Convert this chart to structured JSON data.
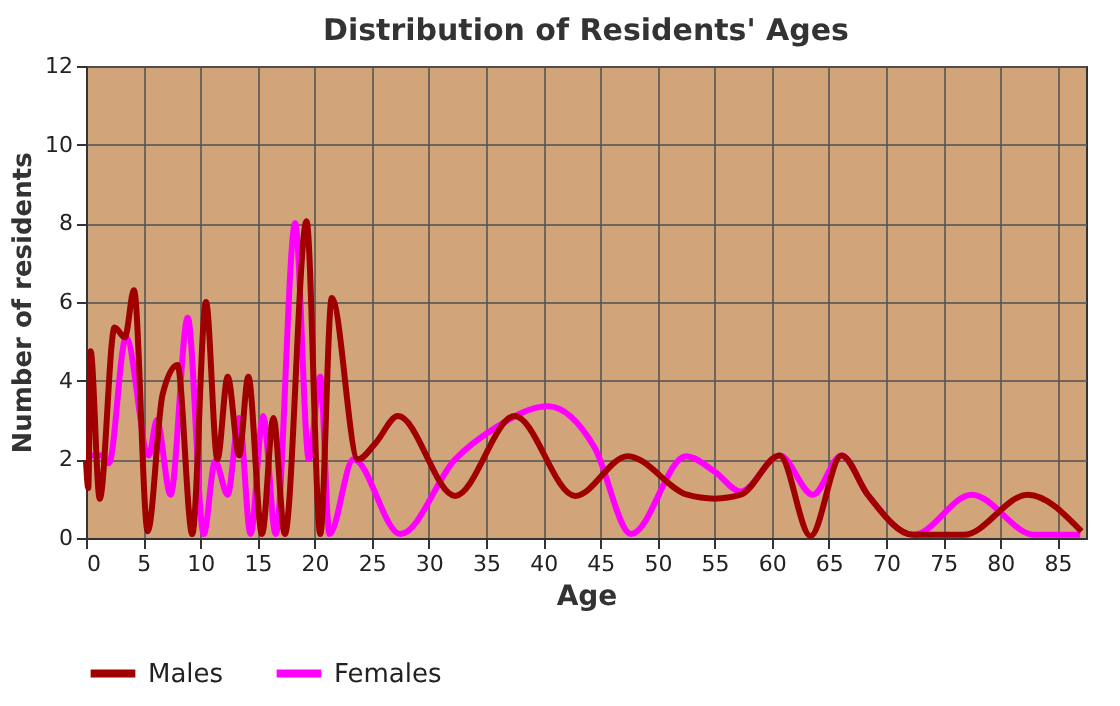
{
  "chart_data": {
    "type": "line",
    "title": "Distribution of Residents' Ages",
    "xlabel": "Age",
    "ylabel": "Number of residents",
    "xlim": [
      0,
      87.5
    ],
    "xticks": [
      0,
      5,
      10,
      15,
      20,
      25,
      30,
      35,
      40,
      45,
      50,
      55,
      60,
      65,
      70,
      75,
      80,
      85
    ],
    "ylim": [
      0,
      12
    ],
    "yticks": [
      0,
      2,
      4,
      6,
      8,
      10,
      12
    ],
    "grid": true,
    "legend": "bottom",
    "line_style": "solid",
    "marker": "none",
    "series": [
      {
        "name": "Males",
        "color": "#a00000",
        "x": [
          0,
          0.2,
          0.4,
          1.2,
          2.5,
          3.4,
          4.2,
          5.4,
          6.7,
          8.0,
          9.3,
          10.5,
          11.5,
          12.4,
          13.4,
          14.2,
          15.4,
          16.4,
          17.4,
          19.3,
          20.5,
          21.5,
          23.8,
          25.3,
          27.3,
          32.3,
          37.5,
          42.8,
          47.4,
          52.6,
          55,
          57.3,
          60.7,
          63.4,
          66.1,
          68.4,
          72.4,
          76.8,
          82.4,
          87.1
        ],
        "values": [
          1.95,
          1.27,
          4.75,
          1.0,
          5.35,
          5.1,
          6.3,
          0.17,
          3.65,
          4.4,
          0.1,
          6.0,
          2.0,
          4.1,
          2.1,
          4.1,
          0.1,
          3.05,
          0.1,
          8.05,
          0.1,
          6.1,
          2.0,
          2.4,
          3.1,
          1.07,
          3.1,
          1.07,
          2.08,
          1.1,
          1.0,
          1.1,
          2.1,
          0.05,
          2.1,
          1.1,
          0.08,
          0.08,
          1.1,
          0.17
        ]
      },
      {
        "name": "Females",
        "color": "#ff00ff",
        "x": [
          0,
          1.45,
          2.0,
          3.5,
          5.5,
          6.2,
          7.4,
          8.9,
          10.3,
          11.3,
          12.4,
          13.4,
          14.4,
          15.5,
          16.6,
          18.3,
          19.5,
          20.5,
          21.3,
          23.4,
          27.5,
          32.3,
          35.8,
          40.4,
          44.5,
          47.7,
          52.5,
          55,
          57.3,
          60.7,
          63.6,
          66.1,
          68.4,
          72.4,
          77.5,
          83,
          87
        ],
        "values": [
          2.1,
          2.1,
          1.9,
          5.1,
          2.1,
          3.0,
          1.1,
          5.6,
          0.1,
          1.95,
          1.1,
          3.05,
          0.1,
          3.1,
          0.1,
          8.0,
          2.0,
          4.1,
          0.1,
          2.0,
          0.1,
          2.0,
          2.8,
          3.35,
          2.3,
          0.1,
          2.08,
          1.69,
          1.18,
          2.1,
          1.1,
          2.1,
          1.1,
          0.08,
          1.1,
          0.08,
          0.08
        ]
      }
    ]
  }
}
